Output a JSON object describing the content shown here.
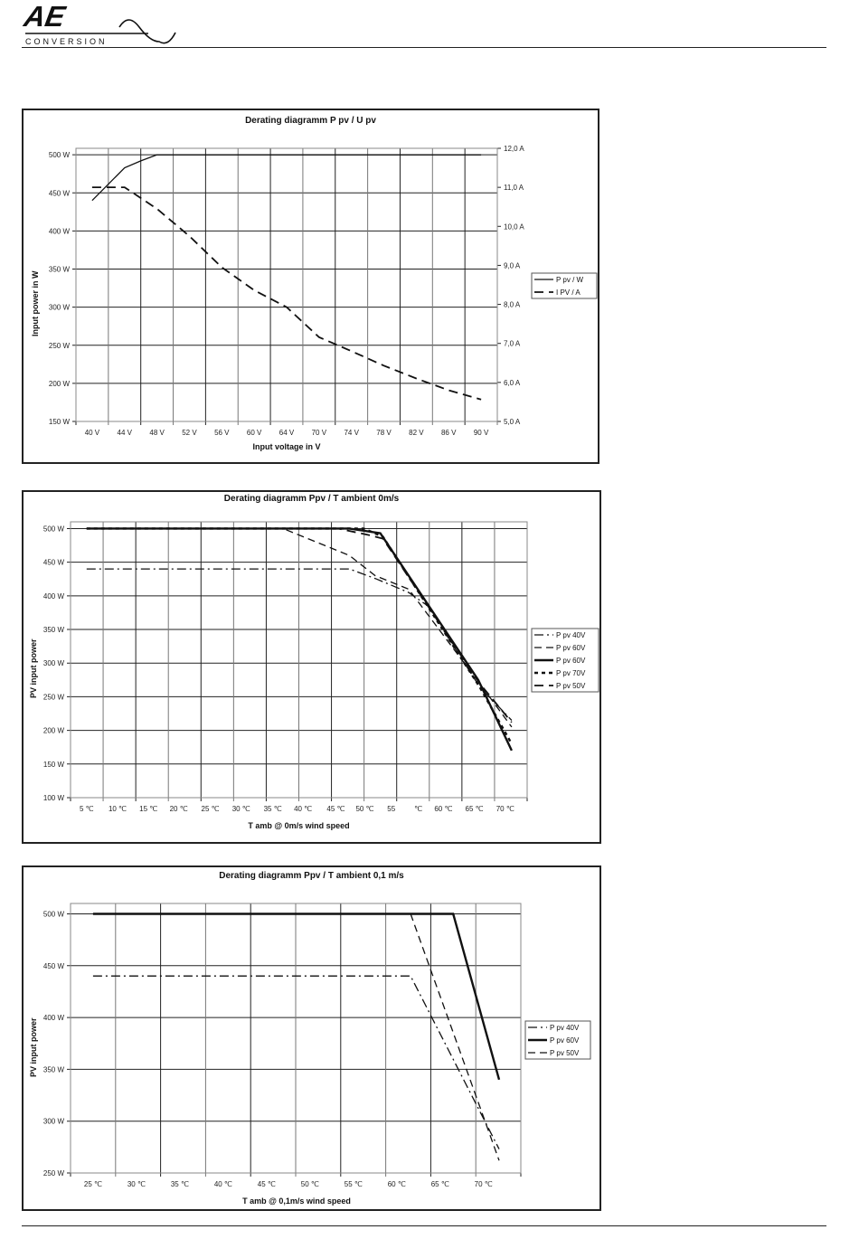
{
  "header": {
    "logo_text": "AE",
    "logo_subtext": "CONVERSION"
  },
  "chart_data": [
    {
      "type": "line",
      "title": "Derating diagramm P pv / U pv",
      "xlabel": "Input voltage in V",
      "ylabel": "Input power in W",
      "x_mode": "category",
      "categories": [
        "40 V",
        "44 V",
        "48 V",
        "52 V",
        "56 V",
        "60 V",
        "64 V",
        "70 V",
        "74 V",
        "78 V",
        "82 V",
        "86 V",
        "90 V"
      ],
      "ylim": [
        150,
        508.5
      ],
      "yticks": [
        150,
        200,
        250,
        300,
        350,
        400,
        450,
        500
      ],
      "ytick_labels": [
        "150 W",
        "200 W",
        "250 W",
        "300 W",
        "350 W",
        "400 W",
        "450 W",
        "500 W"
      ],
      "y2lim": [
        5,
        12
      ],
      "y2ticks": [
        5,
        6,
        7,
        8,
        9,
        10,
        11,
        12
      ],
      "y2tick_labels": [
        "5,0 A",
        "6,0 A",
        "7,0 A",
        "8,0 A",
        "9,0 A",
        "10,0 A",
        "11,0 A",
        "12,0 A"
      ],
      "series": [
        {
          "name": "P pv / W",
          "style": "solid",
          "axis": "left",
          "x": [
            0,
            1,
            1.5,
            2,
            12
          ],
          "y": [
            440,
            483,
            492,
            500,
            500
          ]
        },
        {
          "name": "I PV / A",
          "style": "dash-long",
          "axis": "right",
          "x": [
            0,
            1,
            2,
            3,
            4,
            5,
            6,
            7,
            8,
            9,
            10,
            11,
            12
          ],
          "y": [
            11.0,
            11.0,
            10.45,
            9.75,
            8.95,
            8.36,
            7.93,
            7.16,
            6.8,
            6.43,
            6.1,
            5.8,
            5.56
          ]
        }
      ],
      "legend": "right"
    },
    {
      "type": "line",
      "title": "Derating diagramm Ppv / T ambient 0m/s",
      "xlabel": "T amb  @  0m/s wind speed",
      "ylabel": "PV input power",
      "x_mode": "numeric",
      "xlim": [
        2.5,
        73.4
      ],
      "xgrid_count": 14,
      "xticks": [
        5,
        9.8,
        14.6,
        19.3,
        24.2,
        29,
        33.9,
        38.6,
        43.7,
        48.2,
        52.3,
        56.5,
        60.4,
        65.2,
        70
      ],
      "xtick_labels": [
        "5 ℃",
        "10 ℃",
        "15 ℃",
        "20 ℃",
        "25 ℃",
        "30 ℃",
        "35 ℃",
        "40 ℃",
        "45 ℃",
        "50 ℃",
        "55",
        "℃",
        "60 ℃",
        "65 ℃",
        "70 ℃"
      ],
      "ylim": [
        100,
        510
      ],
      "yticks": [
        100,
        150,
        200,
        250,
        300,
        350,
        400,
        450,
        500
      ],
      "ytick_labels": [
        "100 W",
        "150 W",
        "200 W",
        "250 W",
        "300 W",
        "350 W",
        "400 W",
        "450 W",
        "500 W"
      ],
      "series": [
        {
          "name": "P pv 40V",
          "style": "dash-dot",
          "x": [
            5,
            45.8,
            50,
            55,
            58,
            66,
            71
          ],
          "y": [
            440,
            440,
            425,
            405,
            385,
            265,
            215
          ]
        },
        {
          "name": "P pv 60V",
          "style": "dash",
          "x": [
            5,
            35.5,
            45.8,
            49.8,
            55,
            66,
            71
          ],
          "y": [
            500,
            500,
            460,
            430,
            410,
            270,
            205
          ]
        },
        {
          "name": "P pv 60V",
          "style": "solid-bold",
          "x": [
            5,
            45.8,
            50.6,
            65.8,
            71
          ],
          "y": [
            500,
            500,
            493,
            275,
            170
          ]
        },
        {
          "name": "P pv 70V",
          "style": "dotted-bold",
          "x": [
            5,
            48,
            51,
            66,
            71
          ],
          "y": [
            500,
            500,
            488,
            265,
            180
          ]
        },
        {
          "name": "P pv 50V",
          "style": "dash-long",
          "x": [
            5,
            44,
            49,
            51,
            66,
            71
          ],
          "y": [
            500,
            500,
            490,
            485,
            270,
            212
          ]
        }
      ],
      "legend": "right"
    },
    {
      "type": "line",
      "title": "Derating diagramm Ppv / T ambient 0,1 m/s",
      "xlabel": "T amb  @  0,1m/s wind speed",
      "ylabel": "PV input power",
      "x_mode": "numeric",
      "xlim": [
        22.4,
        74.3
      ],
      "xgrid_count": 10,
      "xticks": [
        25,
        30,
        35,
        40,
        45,
        50,
        55,
        60,
        65,
        70
      ],
      "xtick_labels": [
        "25 ℃",
        "30 ℃",
        "35 ℃",
        "40 ℃",
        "45 ℃",
        "50 ℃",
        "55 ℃",
        "60 ℃",
        "65 ℃",
        "70 ℃"
      ],
      "ylim": [
        250,
        510
      ],
      "yticks": [
        250,
        300,
        350,
        400,
        450,
        500
      ],
      "ytick_labels": [
        "250 W",
        "300 W",
        "350 W",
        "400 W",
        "450 W",
        "500 W"
      ],
      "series": [
        {
          "name": "P pv 40V",
          "style": "dash-dot",
          "x": [
            25,
            61.6,
            71.8
          ],
          "y": [
            440,
            440,
            273
          ]
        },
        {
          "name": "P pv 60V",
          "style": "solid-bold",
          "x": [
            25,
            66.5,
            71.8
          ],
          "y": [
            500,
            500,
            340
          ]
        },
        {
          "name": "P pv 50V",
          "style": "dash",
          "x": [
            61.6,
            71.8
          ],
          "y": [
            500,
            262
          ]
        }
      ],
      "legend": "right"
    }
  ]
}
